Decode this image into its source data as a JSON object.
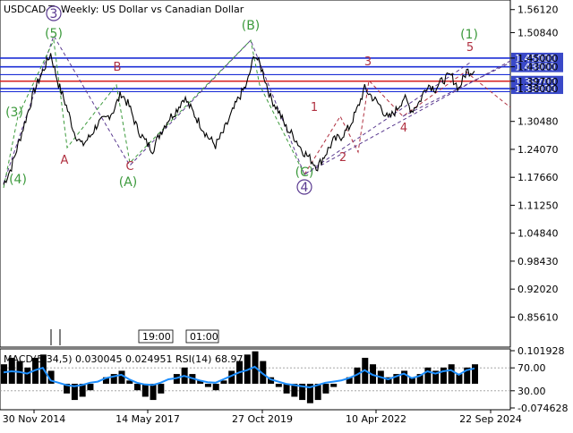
{
  "chart_data": {
    "type": "line",
    "title": "USDCAD-T, Weekly:  US Dollar vs Canadian Dollar",
    "y_ticks_main": [
      "1.56120",
      "1.50840",
      "1.45000",
      "1.43000",
      "1.39700",
      "1.38000",
      "1.30480",
      "1.24070",
      "1.17660",
      "1.11250",
      "1.04840",
      "0.98430",
      "0.92020",
      "0.85610"
    ],
    "x_ticks": [
      "30 Nov 2014",
      "14 May 2017",
      "27 Oct 2019",
      "10 Apr 2022",
      "22 Sep 2024"
    ],
    "time_boxes": [
      "19:00",
      "01:00"
    ],
    "levels": [
      {
        "label": "1.45000",
        "value": 1.45,
        "color": "#1d2fd6"
      },
      {
        "label": "1.43000",
        "value": 1.43,
        "color": "#1d2fd6"
      },
      {
        "label": "1.39700",
        "value": 1.397,
        "color": "#d62020"
      },
      {
        "label": "1.38000",
        "value": 1.38,
        "color": "#1d2fd6"
      }
    ],
    "extra_levels": [
      1.412,
      1.373
    ],
    "ylim": [
      0.82,
      1.575
    ],
    "series": [
      {
        "values": [
          1.16,
          1.2,
          1.26,
          1.32,
          1.38,
          1.42,
          1.46,
          1.39,
          1.34,
          1.28,
          1.25,
          1.27,
          1.3,
          1.31,
          1.33,
          1.37,
          1.34,
          1.29,
          1.26,
          1.24,
          1.28,
          1.31,
          1.33,
          1.36,
          1.33,
          1.3,
          1.27,
          1.25,
          1.28,
          1.32,
          1.36,
          1.39,
          1.46,
          1.42,
          1.36,
          1.33,
          1.29,
          1.27,
          1.24,
          1.22,
          1.2,
          1.23,
          1.26,
          1.27,
          1.29,
          1.33,
          1.38,
          1.36,
          1.34,
          1.31,
          1.33,
          1.36,
          1.33,
          1.35,
          1.39,
          1.38,
          1.4,
          1.41,
          1.38,
          1.42,
          1.42
        ]
      }
    ],
    "macd": {
      "label": "MACD(5,34,5) 0.030045 0.024951 RSI(14) 68.97",
      "ticks": [
        "0.101928",
        "70.00",
        "30.00",
        "-0.074628"
      ],
      "histogram": [
        0.06,
        0.08,
        0.07,
        0.05,
        0.08,
        0.09,
        0.04,
        0.0,
        -0.03,
        -0.05,
        -0.04,
        -0.02,
        0.0,
        0.02,
        0.03,
        0.04,
        0.01,
        -0.02,
        -0.04,
        -0.05,
        -0.03,
        0.0,
        0.03,
        0.05,
        0.03,
        0.01,
        -0.01,
        -0.02,
        0.01,
        0.04,
        0.07,
        0.09,
        0.1,
        0.07,
        0.02,
        -0.01,
        -0.03,
        -0.04,
        -0.05,
        -0.06,
        -0.05,
        -0.03,
        -0.01,
        0.0,
        0.02,
        0.05,
        0.08,
        0.06,
        0.04,
        0.02,
        0.03,
        0.04,
        0.02,
        0.03,
        0.05,
        0.04,
        0.05,
        0.06,
        0.03,
        0.05,
        0.06
      ],
      "rsi": [
        62,
        64,
        63,
        60,
        66,
        70,
        48,
        44,
        40,
        38,
        40,
        44,
        46,
        52,
        55,
        58,
        50,
        44,
        41,
        40,
        44,
        50,
        52,
        56,
        52,
        48,
        45,
        44,
        50,
        56,
        62,
        66,
        72,
        60,
        50,
        46,
        42,
        40,
        38,
        36,
        40,
        44,
        46,
        48,
        52,
        58,
        66,
        58,
        54,
        50,
        55,
        60,
        52,
        56,
        64,
        60,
        64,
        66,
        58,
        66,
        69
      ]
    },
    "wave_labels": [
      {
        "text": "3",
        "style": "purple",
        "circle": true
      },
      {
        "text": "(5)",
        "style": "green"
      },
      {
        "text": "(B)",
        "style": "green"
      },
      {
        "text": "(1)",
        "style": "green"
      },
      {
        "text": "(3)",
        "style": "green"
      },
      {
        "text": "(4)",
        "style": "green"
      },
      {
        "text": "A",
        "style": "red"
      },
      {
        "text": "B",
        "style": "red"
      },
      {
        "text": "C",
        "style": "red"
      },
      {
        "text": "(A)",
        "style": "green"
      },
      {
        "text": "1",
        "style": "red"
      },
      {
        "text": "2",
        "style": "red"
      },
      {
        "text": "3",
        "style": "red"
      },
      {
        "text": "4",
        "style": "red"
      },
      {
        "text": "5",
        "style": "red"
      },
      {
        "text": "(C)",
        "style": "green"
      },
      {
        "text": "4",
        "style": "purple",
        "circle": true
      }
    ]
  }
}
